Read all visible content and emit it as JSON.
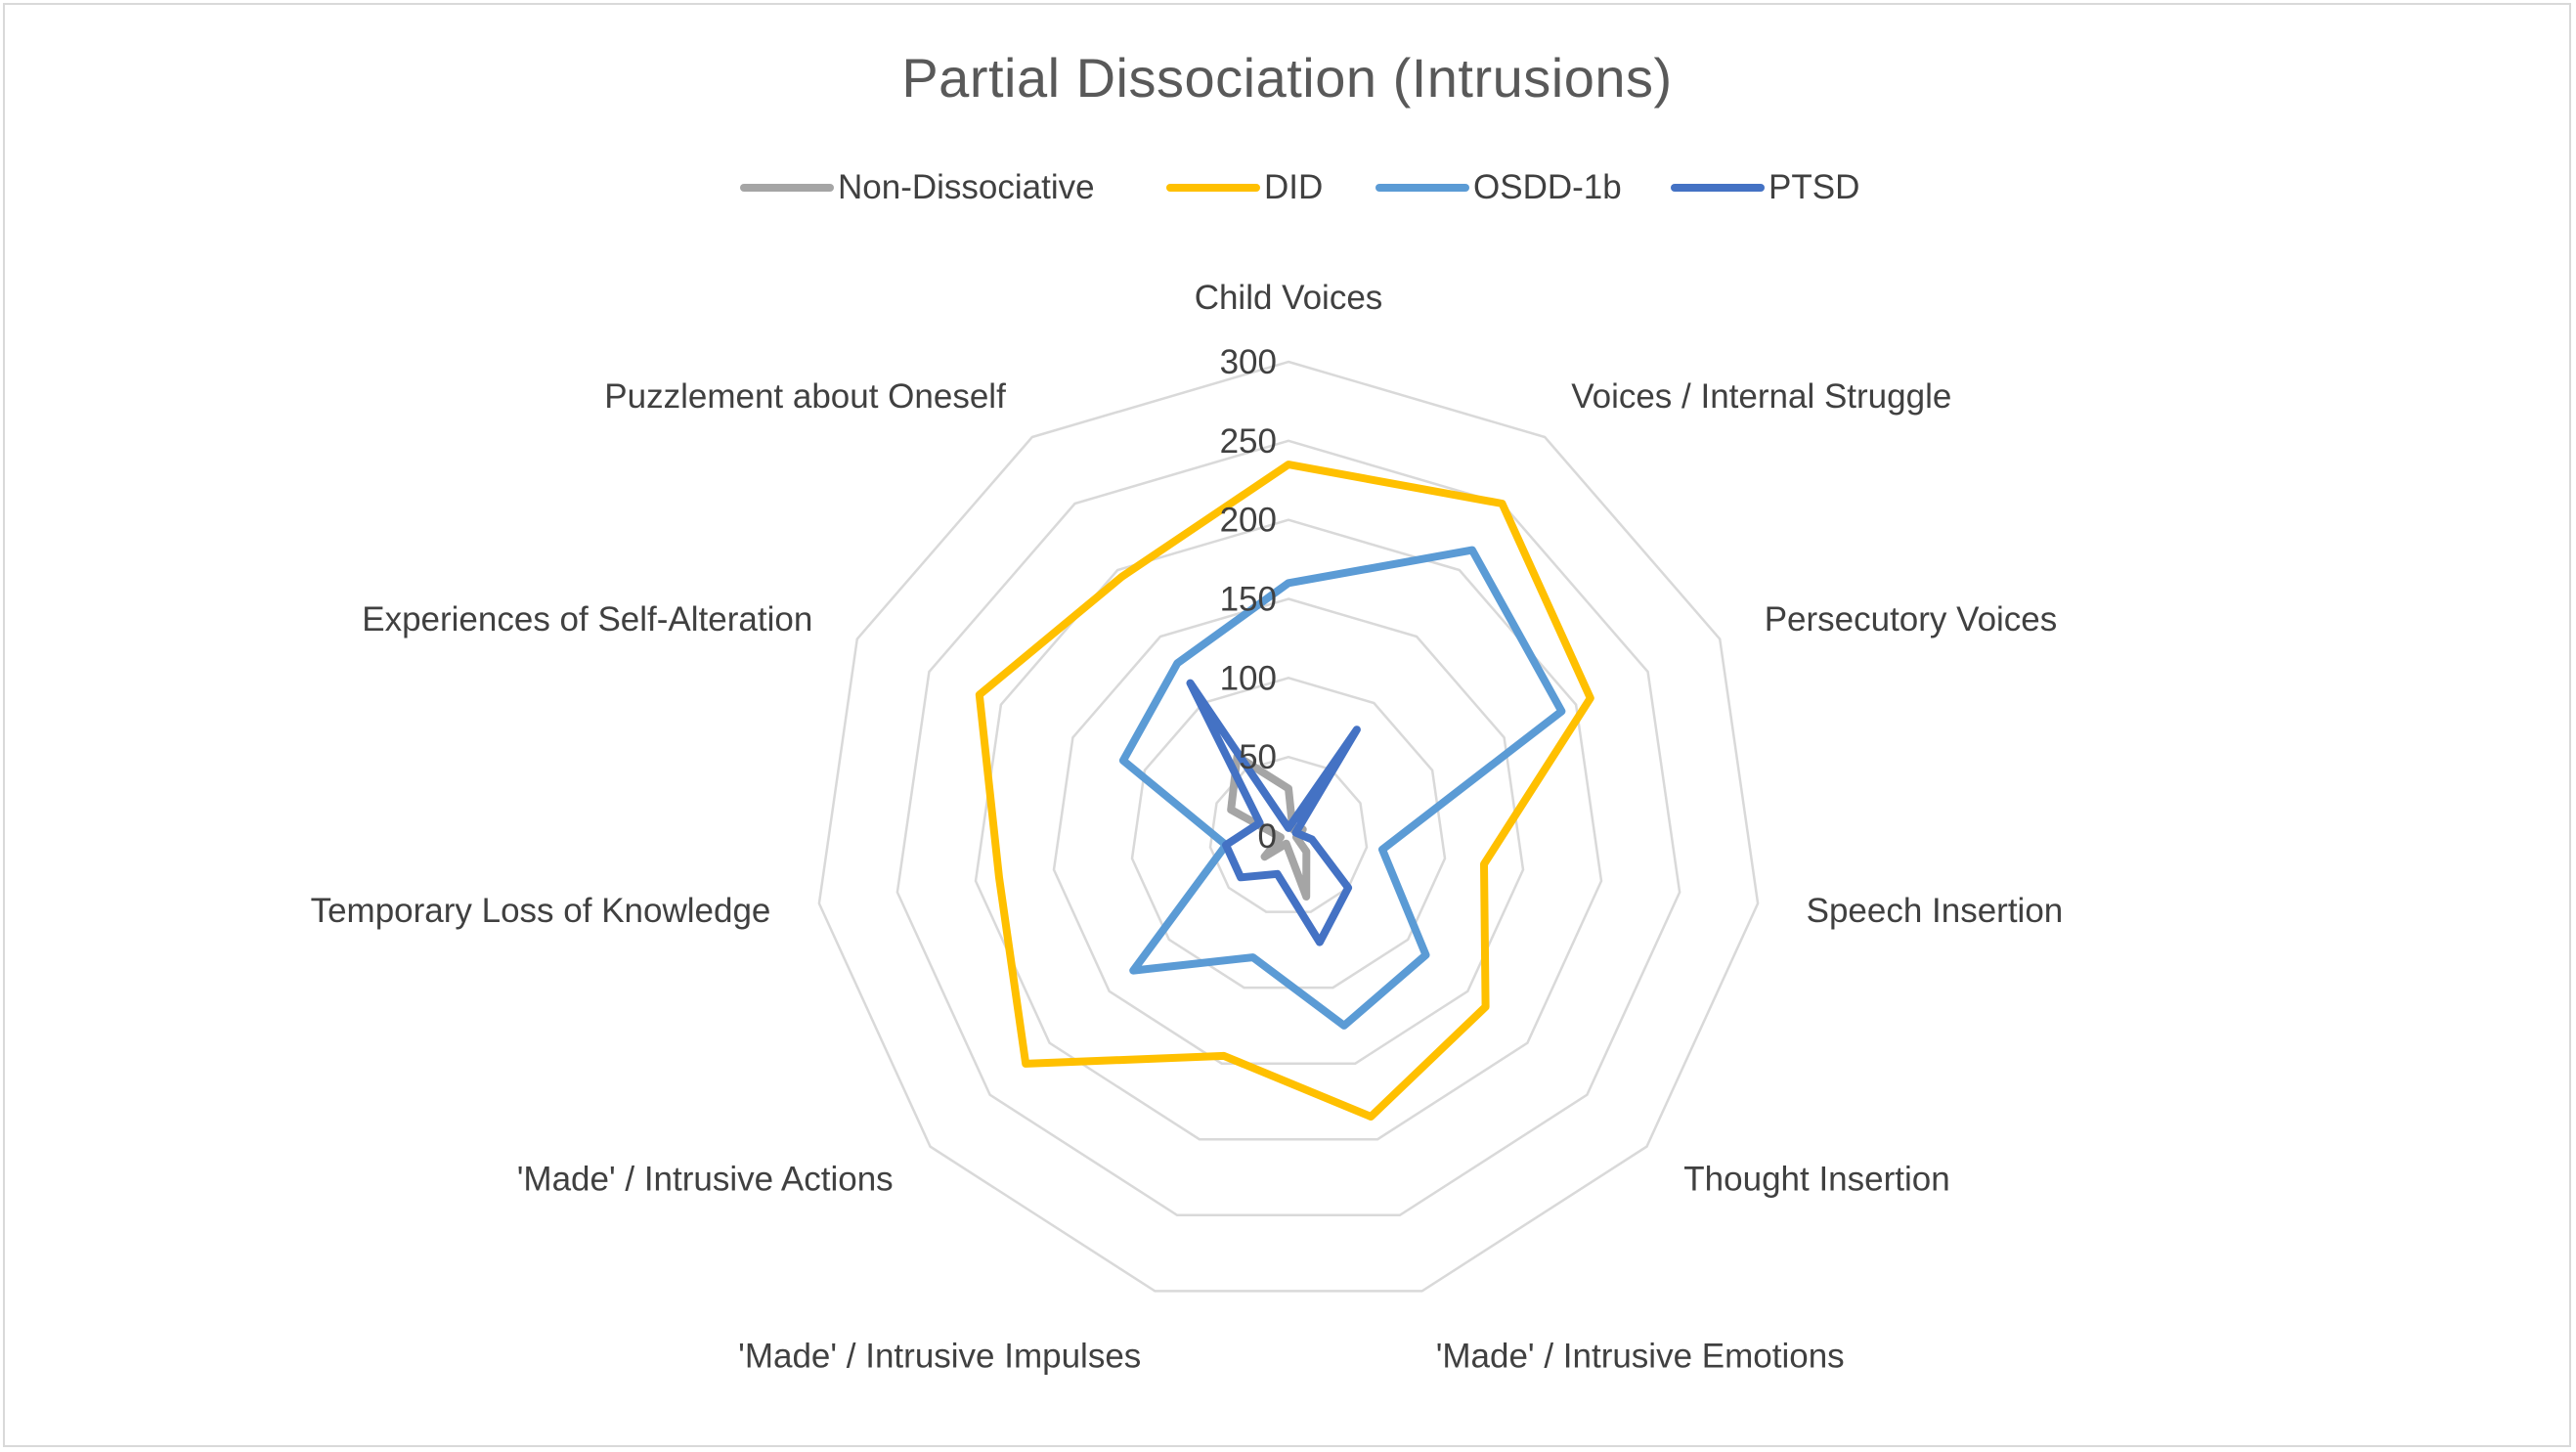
{
  "chart_data": {
    "type": "radar",
    "title": "Partial Dissociation (Intrusions)",
    "categories": [
      "Child Voices",
      "Voices / Internal Struggle",
      "Persecutory Voices",
      "Speech Insertion",
      "Thought Insertion",
      "'Made' / Intrusive Emotions",
      "'Made' / Intrusive Impulses",
      "'Made' / Intrusive Actions",
      "Temporary Loss of Knowledge",
      "Experiences of Self-Alteration",
      "Puzzlement about Oneself"
    ],
    "rlim": [
      0,
      300
    ],
    "ticks": [
      0,
      50,
      100,
      150,
      200,
      250,
      300
    ],
    "grid": true,
    "legend_position": "top",
    "series": [
      {
        "name": "Non-Dissociative",
        "color": "#a5a5a5",
        "values": [
          30,
          5,
          10,
          5,
          15,
          40,
          5,
          20,
          5,
          40,
          60
        ]
      },
      {
        "name": "DID",
        "color": "#ffc000",
        "values": [
          235,
          250,
          210,
          125,
          165,
          185,
          145,
          220,
          185,
          215,
          195
        ]
      },
      {
        "name": "OSDD-1b",
        "color": "#5b9bd5",
        "values": [
          160,
          215,
          190,
          60,
          115,
          125,
          80,
          130,
          40,
          115,
          130
        ]
      },
      {
        "name": "PTSD",
        "color": "#4472c4",
        "values": [
          5,
          80,
          5,
          15,
          50,
          70,
          25,
          40,
          40,
          20,
          115
        ]
      }
    ]
  }
}
